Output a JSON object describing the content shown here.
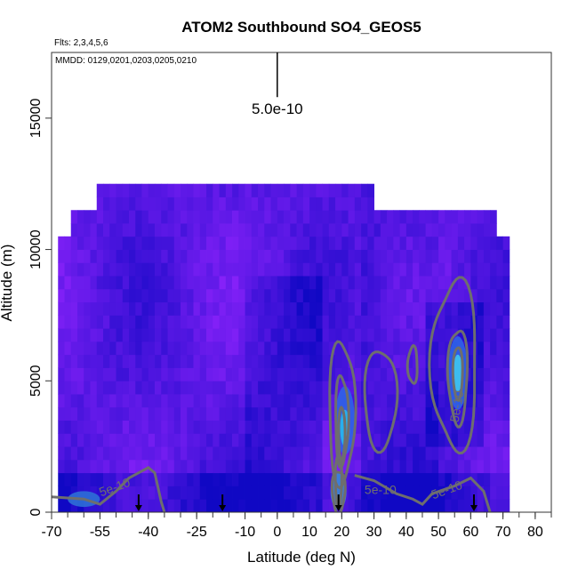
{
  "chart_data": {
    "type": "heatmap",
    "title": "ATOM2 Southbound SO4_GEOS5",
    "flights_note": "Flts: 2,3,4,5,6",
    "dates_note": "MMDD: 0129,0201,0203,0205,0210",
    "xlabel": "Latitude (deg N)",
    "ylabel": "Altitude (m)",
    "xlim": [
      -70,
      85
    ],
    "ylim": [
      0,
      17500
    ],
    "x_ticks": [
      -70,
      -55,
      -40,
      -25,
      -10,
      0,
      10,
      20,
      30,
      40,
      50,
      60,
      70,
      80
    ],
    "x_tick_labels": [
      "-70",
      "-55",
      "-40",
      "-25",
      "-10",
      "0",
      "10",
      "20",
      "30",
      "40",
      "50",
      "60",
      "70",
      "80"
    ],
    "y_ticks": [
      0,
      5000,
      10000,
      15000
    ],
    "y_tick_labels": [
      "0",
      "5000",
      "10000",
      "15000"
    ],
    "scale_bar": {
      "label": "5.0e-10",
      "value": 5e-10,
      "x": 0,
      "y_bottom": 15800,
      "y_top": 17500
    },
    "contour_labels": [
      {
        "text": "5e-10",
        "x": -50,
        "y": 800
      },
      {
        "text": "5e-10",
        "x": 57,
        "y": 4000
      },
      {
        "text": "5e-10",
        "x": 32,
        "y": 700
      },
      {
        "text": "5e-10",
        "x": 53,
        "y": 700
      }
    ],
    "arrow_markers_x": [
      -43,
      -17,
      19,
      61
    ],
    "coverage": [
      {
        "lat_min": -68,
        "lat_max": 72,
        "alt_min": 0,
        "alt_max": 10500
      },
      {
        "lat_min": -64,
        "lat_max": 68,
        "alt_min": 10500,
        "alt_max": 11500
      },
      {
        "lat_min": -56,
        "lat_max": 30,
        "alt_min": 11500,
        "alt_max": 12500
      }
    ],
    "grid": false,
    "legend": "none"
  }
}
